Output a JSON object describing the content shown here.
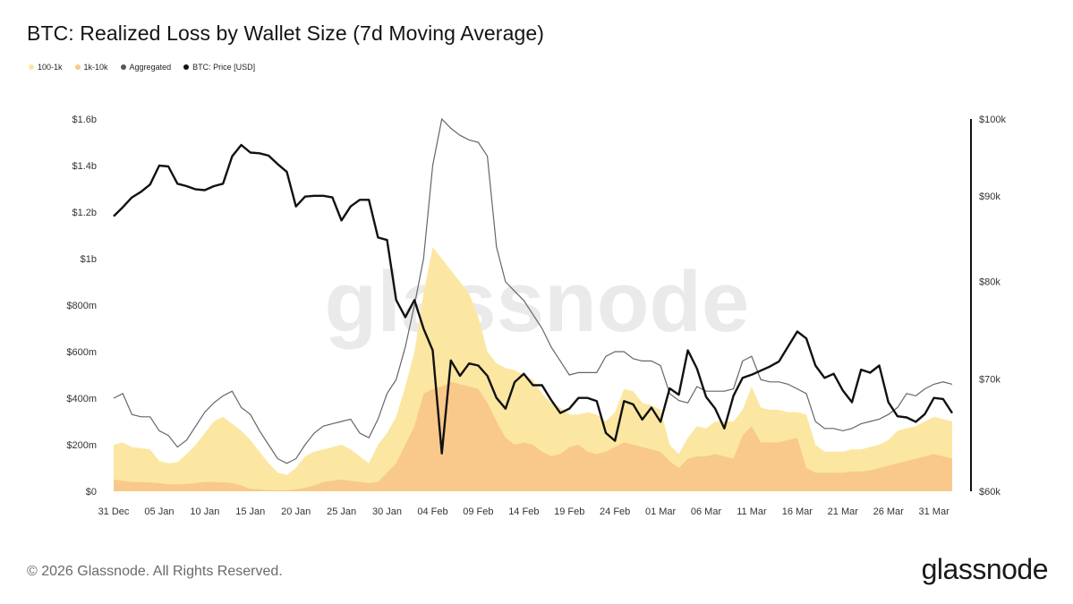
{
  "title": "BTC: Realized Loss by Wallet Size (7d Moving Average)",
  "legend": [
    {
      "label": "100-1k",
      "color": "#fbe7a1"
    },
    {
      "label": "1k-10k",
      "color": "#f8c98a"
    },
    {
      "label": "Aggregated",
      "color": "#555555"
    },
    {
      "label": "BTC: Price [USD]",
      "color": "#111111"
    }
  ],
  "footer": "© 2026 Glassnode. All Rights Reserved.",
  "brand": "glassnode",
  "watermark": "glassnode",
  "chart_data": {
    "type": "area",
    "x": [
      "31 Dec",
      "01 Jan",
      "02 Jan",
      "03 Jan",
      "04 Jan",
      "05 Jan",
      "06 Jan",
      "07 Jan",
      "08 Jan",
      "09 Jan",
      "10 Jan",
      "11 Jan",
      "12 Jan",
      "13 Jan",
      "14 Jan",
      "15 Jan",
      "16 Jan",
      "17 Jan",
      "18 Jan",
      "19 Jan",
      "20 Jan",
      "21 Jan",
      "22 Jan",
      "23 Jan",
      "24 Jan",
      "25 Jan",
      "26 Jan",
      "27 Jan",
      "28 Jan",
      "29 Jan",
      "30 Jan",
      "31 Jan",
      "01 Feb",
      "02 Feb",
      "03 Feb",
      "04 Feb",
      "05 Feb",
      "06 Feb",
      "07 Feb",
      "08 Feb",
      "09 Feb",
      "10 Feb",
      "11 Feb",
      "12 Feb",
      "13 Feb",
      "14 Feb",
      "15 Feb",
      "16 Feb",
      "17 Feb",
      "18 Feb",
      "19 Feb",
      "20 Feb",
      "21 Feb",
      "22 Feb",
      "23 Feb",
      "24 Feb",
      "25 Feb",
      "26 Feb",
      "27 Feb",
      "28 Feb",
      "01 Mar",
      "02 Mar",
      "03 Mar",
      "04 Mar",
      "05 Mar",
      "06 Mar",
      "07 Mar",
      "08 Mar",
      "09 Mar",
      "10 Mar",
      "11 Mar",
      "12 Mar",
      "13 Mar",
      "14 Mar",
      "15 Mar",
      "16 Mar",
      "17 Mar",
      "18 Mar",
      "19 Mar",
      "20 Mar",
      "21 Mar",
      "22 Mar",
      "23 Mar",
      "24 Mar",
      "25 Mar",
      "26 Mar",
      "27 Mar",
      "28 Mar",
      "29 Mar",
      "30 Mar",
      "31 Mar",
      "01 Apr",
      "02 Apr"
    ],
    "x_ticks": [
      "31 Dec",
      "05 Jan",
      "10 Jan",
      "15 Jan",
      "20 Jan",
      "25 Jan",
      "30 Jan",
      "04 Feb",
      "09 Feb",
      "14 Feb",
      "19 Feb",
      "24 Feb",
      "01 Mar",
      "06 Mar",
      "11 Mar",
      "16 Mar",
      "21 Mar",
      "26 Mar",
      "31 Mar"
    ],
    "y_left": {
      "unit": "USD",
      "ylim": [
        0,
        1600000000
      ],
      "ticks": [
        "$0",
        "$200m",
        "$400m",
        "$600m",
        "$800m",
        "$1b",
        "$1.2b",
        "$1.4b",
        "$1.6b"
      ]
    },
    "y_right": {
      "unit": "USD",
      "scale": "log",
      "ylim": [
        60000,
        100000
      ],
      "ticks": [
        {
          "value": 60000,
          "label": "$60k"
        },
        {
          "value": 70000,
          "label": "$70k"
        },
        {
          "value": 80000,
          "label": "$80k"
        },
        {
          "value": 90000,
          "label": "$90k"
        },
        {
          "value": 100000,
          "label": "$100k"
        }
      ]
    },
    "series": [
      {
        "name": "100-1k",
        "axis": "left",
        "color": "#fbe7a1",
        "kind": "area",
        "values": [
          200,
          210,
          190,
          185,
          180,
          130,
          120,
          125,
          160,
          200,
          250,
          300,
          320,
          290,
          260,
          220,
          170,
          120,
          80,
          70,
          100,
          150,
          170,
          180,
          190,
          200,
          180,
          150,
          120,
          200,
          250,
          320,
          450,
          600,
          850,
          1050,
          1000,
          950,
          900,
          850,
          750,
          600,
          550,
          530,
          520,
          500,
          480,
          420,
          380,
          360,
          330,
          330,
          340,
          330,
          300,
          340,
          440,
          430,
          380,
          370,
          350,
          200,
          160,
          230,
          280,
          270,
          300,
          300,
          300,
          350,
          450,
          360,
          350,
          350,
          340,
          340,
          330,
          200,
          170,
          170,
          170,
          180,
          180,
          190,
          200,
          220,
          260,
          270,
          280,
          300,
          320,
          310,
          300
        ]
      },
      {
        "name": "1k-10k",
        "axis": "left",
        "color": "#f8c98a",
        "kind": "area",
        "values": [
          50,
          45,
          40,
          40,
          38,
          35,
          30,
          30,
          32,
          35,
          40,
          40,
          38,
          35,
          25,
          10,
          8,
          5,
          5,
          5,
          8,
          15,
          25,
          40,
          45,
          50,
          45,
          40,
          35,
          40,
          80,
          120,
          200,
          280,
          420,
          440,
          450,
          470,
          460,
          450,
          440,
          380,
          300,
          230,
          200,
          210,
          200,
          170,
          150,
          160,
          190,
          200,
          170,
          160,
          170,
          190,
          210,
          200,
          190,
          180,
          170,
          130,
          100,
          140,
          150,
          150,
          160,
          150,
          140,
          240,
          280,
          210,
          210,
          210,
          220,
          230,
          100,
          80,
          80,
          80,
          80,
          85,
          85,
          90,
          100,
          110,
          120,
          130,
          140,
          150,
          160,
          150,
          140
        ]
      },
      {
        "name": "Aggregated",
        "axis": "left",
        "color": "#666666",
        "kind": "line",
        "values": [
          400,
          420,
          330,
          320,
          320,
          260,
          240,
          190,
          220,
          280,
          340,
          380,
          410,
          430,
          360,
          330,
          260,
          200,
          140,
          120,
          140,
          200,
          250,
          280,
          290,
          300,
          310,
          250,
          230,
          310,
          420,
          480,
          620,
          800,
          1000,
          1400,
          1600,
          1560,
          1530,
          1510,
          1500,
          1440,
          1050,
          900,
          860,
          820,
          760,
          700,
          620,
          560,
          500,
          510,
          510,
          510,
          580,
          600,
          600,
          570,
          560,
          560,
          540,
          420,
          390,
          380,
          450,
          430,
          430,
          430,
          440,
          560,
          580,
          480,
          470,
          470,
          460,
          440,
          420,
          300,
          270,
          270,
          260,
          270,
          290,
          300,
          310,
          330,
          360,
          420,
          410,
          440,
          460,
          470,
          460
        ]
      },
      {
        "name": "BTC: Price [USD]",
        "axis": "right",
        "color": "#111111",
        "kind": "line",
        "values": [
          87500,
          88600,
          89800,
          90500,
          91400,
          93800,
          93700,
          91500,
          91200,
          90800,
          90700,
          91200,
          91500,
          95000,
          96500,
          95500,
          95400,
          95100,
          94000,
          93000,
          88700,
          89900,
          90000,
          90000,
          89800,
          87000,
          88700,
          89500,
          89500,
          85000,
          84700,
          78000,
          76200,
          78000,
          75000,
          72800,
          63200,
          71800,
          70300,
          71500,
          71300,
          70300,
          68200,
          67200,
          69700,
          70500,
          69400,
          69400,
          68000,
          66800,
          67200,
          68200,
          68200,
          67900,
          65000,
          64300,
          67900,
          67600,
          66200,
          67300,
          66000,
          69100,
          68500,
          72800,
          71000,
          68300,
          67200,
          65400,
          68400,
          70100,
          70400,
          70800,
          71200,
          71700,
          73200,
          74700,
          74000,
          71300,
          70100,
          70500,
          68900,
          67800,
          70900,
          70600,
          71300,
          67800,
          66500,
          66400,
          66000,
          66700,
          68200,
          68100,
          66800
        ]
      }
    ]
  }
}
